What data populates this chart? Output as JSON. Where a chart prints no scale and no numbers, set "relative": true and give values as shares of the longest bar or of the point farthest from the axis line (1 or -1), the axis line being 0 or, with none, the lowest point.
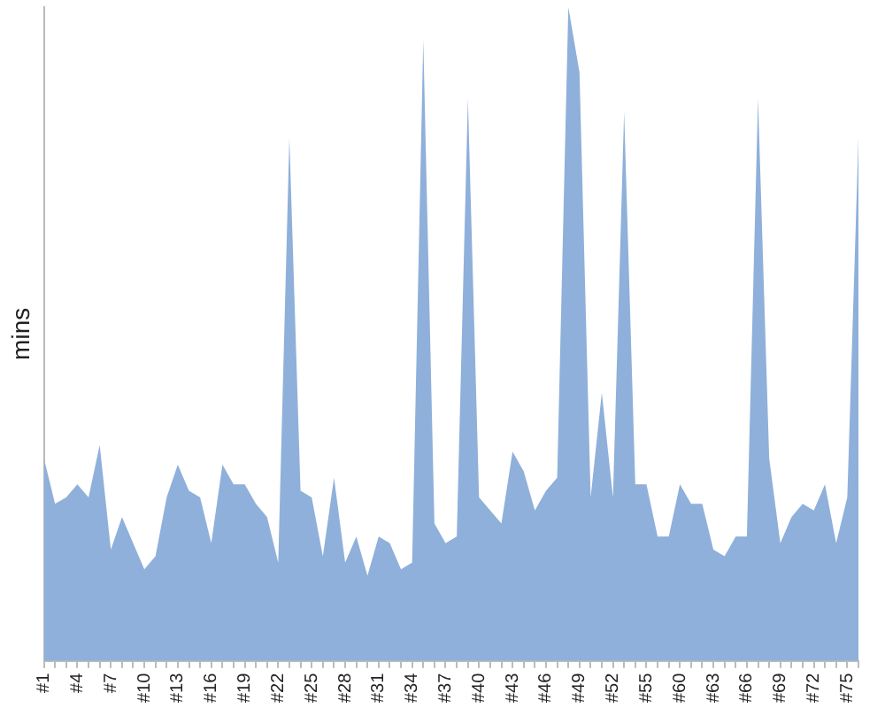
{
  "chart_data": {
    "type": "area",
    "ylabel": "mins",
    "relative": true,
    "color": "#8fb0da",
    "grid": false,
    "legend": false,
    "categories": [
      "#1",
      null,
      null,
      "#4",
      null,
      null,
      "#7",
      null,
      null,
      "#10",
      null,
      null,
      "#13",
      null,
      null,
      "#16",
      null,
      null,
      "#19",
      null,
      null,
      "#22",
      null,
      null,
      "#25",
      null,
      null,
      "#28",
      null,
      null,
      "#31",
      null,
      null,
      "#34",
      null,
      null,
      "#37",
      null,
      null,
      "#40",
      null,
      null,
      "#43",
      null,
      null,
      "#46",
      null,
      null,
      "#49",
      null,
      null,
      "#52",
      null,
      null,
      "#55",
      null,
      null,
      "#60",
      null,
      null,
      "#63",
      null,
      null,
      "#66",
      null,
      null,
      "#69",
      null,
      null,
      "#72",
      null,
      null,
      "#75",
      null
    ],
    "values": [
      0.31,
      0.24,
      0.25,
      0.27,
      0.25,
      0.33,
      0.17,
      0.22,
      0.18,
      0.14,
      0.16,
      0.25,
      0.3,
      0.26,
      0.25,
      0.18,
      0.3,
      0.27,
      0.27,
      0.24,
      0.22,
      0.15,
      0.8,
      0.26,
      0.25,
      0.16,
      0.28,
      0.15,
      0.19,
      0.13,
      0.19,
      0.18,
      0.14,
      0.15,
      0.95,
      0.21,
      0.18,
      0.19,
      0.86,
      0.25,
      0.23,
      0.21,
      0.32,
      0.29,
      0.23,
      0.26,
      0.28,
      1,
      0.9,
      0.25,
      0.41,
      0.25,
      0.84,
      0.27,
      0.27,
      0.19,
      0.19,
      0.27,
      0.24,
      0.24,
      0.17,
      0.16,
      0.19,
      0.19,
      0.86,
      0.31,
      0.18,
      0.22,
      0.24,
      0.23,
      0.27,
      0.18,
      0.25,
      0.8
    ]
  }
}
